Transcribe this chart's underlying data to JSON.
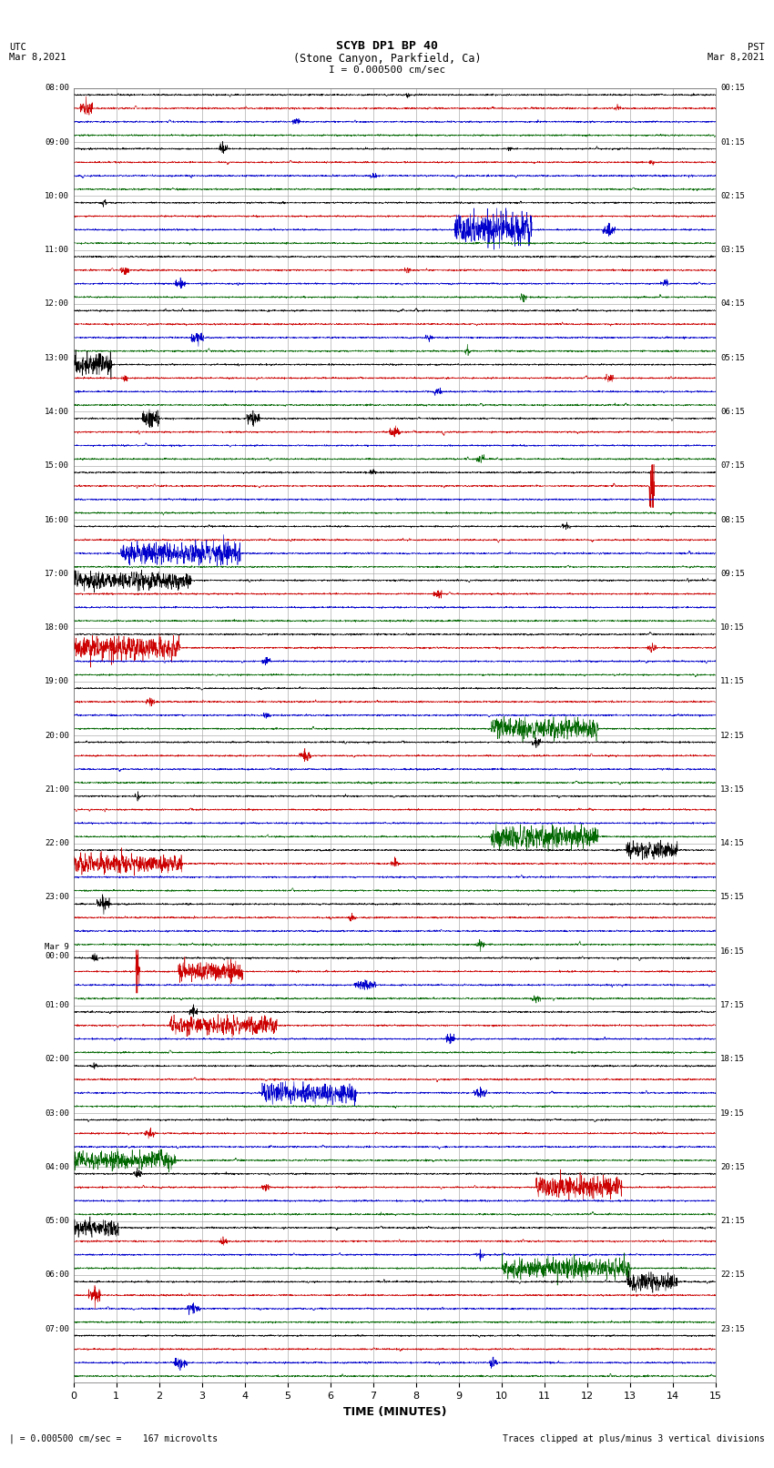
{
  "title_line1": "SCYB DP1 BP 40",
  "title_line2": "(Stone Canyon, Parkfield, Ca)",
  "scale_text": "I = 0.000500 cm/sec",
  "left_label": "UTC\nMar 8,2021",
  "right_label": "PST\nMar 8,2021",
  "footer_left": "| = 0.000500 cm/sec =    167 microvolts",
  "footer_right": "Traces clipped at plus/minus 3 vertical divisions",
  "xlabel": "TIME (MINUTES)",
  "x_min": 0,
  "x_max": 15,
  "x_ticks": [
    0,
    1,
    2,
    3,
    4,
    5,
    6,
    7,
    8,
    9,
    10,
    11,
    12,
    13,
    14,
    15
  ],
  "num_rows": 24,
  "utc_labels": [
    "08:00",
    "09:00",
    "10:00",
    "11:00",
    "12:00",
    "13:00",
    "14:00",
    "15:00",
    "16:00",
    "17:00",
    "18:00",
    "19:00",
    "20:00",
    "21:00",
    "22:00",
    "23:00",
    "Mar 9\n00:00",
    "01:00",
    "02:00",
    "03:00",
    "04:00",
    "05:00",
    "06:00",
    "07:00"
  ],
  "pst_labels": [
    "00:15",
    "01:15",
    "02:15",
    "03:15",
    "04:15",
    "05:15",
    "06:15",
    "07:15",
    "08:15",
    "09:15",
    "10:15",
    "11:15",
    "12:15",
    "13:15",
    "14:15",
    "15:15",
    "16:15",
    "17:15",
    "18:15",
    "19:15",
    "20:15",
    "21:15",
    "22:15",
    "23:15"
  ],
  "background_color": "#ffffff",
  "grid_color": "#999999",
  "trace_colors": [
    "#000000",
    "#cc0000",
    "#0000cc",
    "#006600"
  ],
  "fig_width": 8.5,
  "fig_height": 16.13
}
